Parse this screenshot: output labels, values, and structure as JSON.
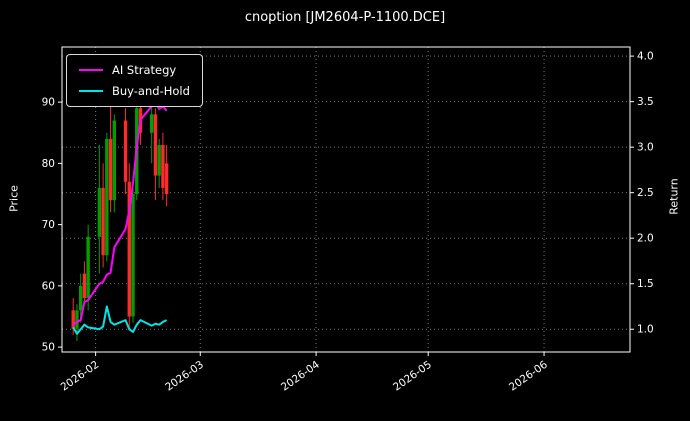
{
  "legend": {
    "items": [
      {
        "label": "AI Strategy",
        "color": "#ff00ff"
      },
      {
        "label": "Buy-and-Hold",
        "color": "#00e5e5"
      }
    ],
    "position": "upper left"
  },
  "chart_data": {
    "type": "candlestick+line",
    "title": "cnoption [JM2604-P-1100.DCE]",
    "ylabel_left": "Price",
    "ylabel_right": "Return",
    "background": "#000000",
    "grid_color": "#787878",
    "grid_style": "dotted",
    "left_ticks": [
      50,
      60,
      70,
      80,
      90
    ],
    "left_range": [
      49.2,
      99.0
    ],
    "right_ticks": [
      1.0,
      1.5,
      2.0,
      2.5,
      3.0,
      3.5,
      4.0
    ],
    "right_range": [
      0.75,
      4.1
    ],
    "x_tick_labels": [
      "2026-02",
      "2026-03",
      "2026-04",
      "2026-05",
      "2026-06"
    ],
    "x_tick_dates": [
      "2026-02-01",
      "2026-03-01",
      "2026-04-01",
      "2026-05-01",
      "2026-06-01"
    ],
    "x_range": [
      "2026-01-23",
      "2026-06-24"
    ],
    "candle_colors": {
      "up": "#00a000",
      "down": "#ff2a2a"
    },
    "dates": [
      "2026-01-26",
      "2026-01-27",
      "2026-01-28",
      "2026-01-29",
      "2026-01-30",
      "2026-02-02",
      "2026-02-03",
      "2026-02-04",
      "2026-02-05",
      "2026-02-06",
      "2026-02-09",
      "2026-02-10",
      "2026-02-11",
      "2026-02-12",
      "2026-02-13",
      "2026-02-16",
      "2026-02-17",
      "2026-02-18",
      "2026-02-19",
      "2026-02-20"
    ],
    "ohlc": [
      [
        56,
        58,
        52,
        53
      ],
      [
        53,
        57,
        51,
        56
      ],
      [
        56,
        62,
        54,
        60
      ],
      [
        62,
        64,
        57,
        58
      ],
      [
        58,
        70,
        56,
        68
      ],
      [
        68,
        83,
        62,
        76
      ],
      [
        76,
        80,
        63,
        65
      ],
      [
        65,
        85,
        64,
        84
      ],
      [
        84,
        90,
        72,
        74
      ],
      [
        74,
        88,
        72,
        87
      ],
      [
        87,
        89,
        75,
        77
      ],
      [
        77,
        80,
        53,
        55
      ],
      [
        55,
        76,
        54,
        75
      ],
      [
        75,
        90,
        74,
        89
      ],
      [
        89,
        91,
        83,
        85
      ],
      [
        85,
        90,
        80,
        88
      ],
      [
        88,
        89,
        74,
        78
      ],
      [
        78,
        84,
        76,
        83
      ],
      [
        83,
        85,
        74,
        76
      ],
      [
        80,
        83,
        73,
        75
      ]
    ],
    "series": [
      {
        "name": "AI Strategy",
        "axis": "right",
        "color": "#ff00ff",
        "values": [
          1.05,
          1.08,
          1.1,
          1.3,
          1.32,
          1.5,
          1.52,
          1.6,
          1.62,
          1.9,
          2.1,
          2.3,
          2.6,
          3.0,
          3.3,
          3.45,
          3.5,
          3.42,
          3.45,
          3.4
        ]
      },
      {
        "name": "Buy-and-Hold",
        "axis": "right",
        "color": "#00e5e5",
        "values": [
          1.02,
          0.95,
          1.0,
          1.05,
          1.02,
          1.0,
          1.03,
          1.25,
          1.08,
          1.05,
          1.1,
          1.0,
          0.97,
          1.05,
          1.1,
          1.04,
          1.06,
          1.05,
          1.08,
          1.1
        ]
      }
    ]
  }
}
